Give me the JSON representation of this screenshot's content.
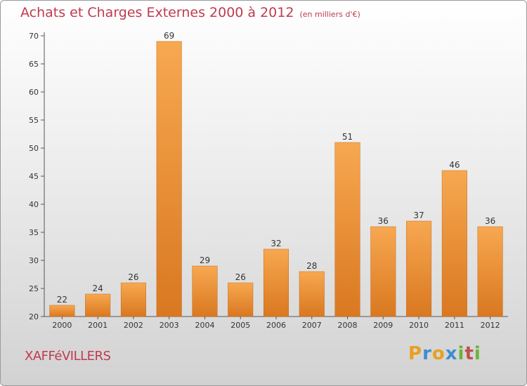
{
  "title": "Achats et Charges Externes 2000 à 2012",
  "unit": "(en milliers d'€)",
  "commune": "XAFFéVILLERS",
  "logo": {
    "letters": [
      "P",
      "r",
      "o",
      "x",
      "i",
      "t",
      "i"
    ],
    "colors": [
      "#e8a020",
      "#3a8fd0",
      "#e8a020",
      "#3a8fd0",
      "#6bb33a",
      "#c0504d",
      "#6bb33a"
    ]
  },
  "chart_data": {
    "type": "bar",
    "categories": [
      "2000",
      "2001",
      "2002",
      "2003",
      "2004",
      "2005",
      "2006",
      "2007",
      "2008",
      "2009",
      "2010",
      "2011",
      "2012"
    ],
    "values": [
      22,
      24,
      26,
      69,
      29,
      26,
      32,
      28,
      51,
      36,
      37,
      46,
      36
    ],
    "ylim": [
      20,
      70
    ],
    "yticks": [
      20,
      25,
      30,
      35,
      40,
      45,
      50,
      55,
      60,
      65,
      70
    ],
    "grid": false,
    "bar_color_top": "#f7a851",
    "bar_color_bottom": "#d97820"
  }
}
